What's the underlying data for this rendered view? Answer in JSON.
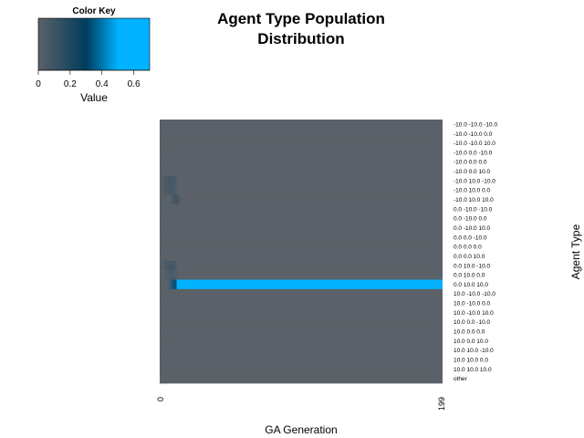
{
  "chart_data": {
    "type": "heatmap",
    "title_lines": [
      "Agent Type Population",
      "Distribution"
    ],
    "xlabel": "GA Generation",
    "ylabel": "Agent Type",
    "x_tick_labels": [
      "0",
      "199"
    ],
    "x_range": [
      0,
      199
    ],
    "rows": [
      "-10.0 -10.0 -10.0",
      "-10.0 -10.0 0.0",
      "-10.0 -10.0 10.0",
      "-10.0 0.0 -10.0",
      "-10.0 0.0 0.0",
      "-10.0 0.0 10.0",
      "-10.0 10.0 -10.0",
      "-10.0 10.0 0.0",
      "-10.0 10.0 10.0",
      "0.0 -10.0 -10.0",
      "0.0 -10.0 0.0",
      "0.0 -10.0 10.0",
      "0.0 0.0 -10.0",
      "0.0 0.0 0.0",
      "0.0 0.0 10.0",
      "0.0 10.0 -10.0",
      "0.0 10.0 0.0",
      "0.0 10.0 10.0",
      "10.0 -10.0 -10.0",
      "10.0 -10.0 0.0",
      "10.0 -10.0 10.0",
      "10.0 0.0 -10.0",
      "10.0 0.0 0.0",
      "10.0 0.0 10.0",
      "10.0 10.0 -10.0",
      "10.0 10.0 0.0",
      "10.0 10.0 10.0",
      "other"
    ],
    "dominant_row": "0.0 10.0 10.0",
    "dominant_from_generation": 12,
    "early_blobs": [
      {
        "row": "-10.0 10.0 -10.0",
        "from": 0,
        "to": 11,
        "value": 0.08
      },
      {
        "row": "-10.0 10.0 0.0",
        "from": 0,
        "to": 11,
        "value": 0.07
      },
      {
        "row": "-10.0 10.0 10.0",
        "from": 7,
        "to": 13,
        "value": 0.1
      },
      {
        "row": "0.0 10.0 -10.0",
        "from": 0,
        "to": 11,
        "value": 0.08
      },
      {
        "row": "0.0 10.0 0.0",
        "from": 3,
        "to": 11,
        "value": 0.06
      },
      {
        "row": "0.0 10.0 10.0",
        "from": 6,
        "to": 11,
        "value": 0.35
      }
    ],
    "background_value": 0.0,
    "dominant_value": 0.7,
    "color_key": {
      "title": "Color Key",
      "label": "Value",
      "ticks": [
        "0",
        "0.2",
        "0.4",
        "0.6"
      ],
      "range": [
        0,
        0.7
      ],
      "colors": {
        "low": "#5b6168",
        "mid": "#003c5d",
        "high": "#00b2ff"
      }
    }
  }
}
